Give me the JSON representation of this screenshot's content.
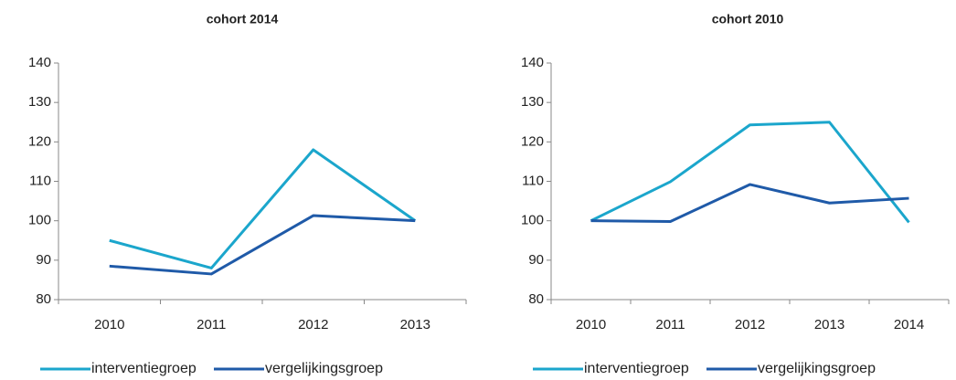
{
  "chart_data": [
    {
      "type": "line",
      "title": "cohort 2014",
      "categories": [
        "2010",
        "2011",
        "2012",
        "2013"
      ],
      "series": [
        {
          "name": "interventiegroep",
          "color": "#1ba6cc",
          "values": [
            95,
            88,
            118,
            100
          ]
        },
        {
          "name": "vergelijkingsgroep",
          "color": "#1f5aa8",
          "values": [
            88.5,
            86.5,
            101.3,
            100
          ]
        }
      ],
      "ylim": [
        80,
        140
      ],
      "yticks": [
        80,
        90,
        100,
        110,
        120,
        130,
        140
      ],
      "grid": false,
      "legend": "bottom"
    },
    {
      "type": "line",
      "title": "cohort 2010",
      "categories": [
        "2010",
        "2011",
        "2012",
        "2013",
        "2014"
      ],
      "series": [
        {
          "name": "interventiegroep",
          "color": "#1ba6cc",
          "values": [
            100,
            109.9,
            124.3,
            125,
            99.6
          ]
        },
        {
          "name": "vergelijkingsgroep",
          "color": "#1f5aa8",
          "values": [
            100,
            99.8,
            109.2,
            104.5,
            105.7
          ]
        }
      ],
      "ylim": [
        80,
        140
      ],
      "yticks": [
        80,
        90,
        100,
        110,
        120,
        130,
        140
      ],
      "grid": false,
      "legend": "bottom"
    }
  ]
}
